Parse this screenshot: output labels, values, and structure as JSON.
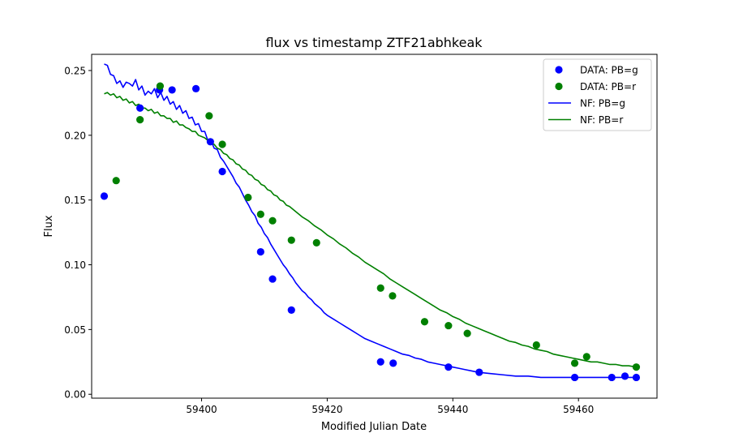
{
  "chart_data": {
    "type": "scatter",
    "title": "flux vs timestamp ZTF21abhkeak",
    "xlabel": "Modified Julian Date",
    "ylabel": "Flux",
    "xlim": [
      59382.5,
      59472.5
    ],
    "ylim": [
      -0.003,
      0.2625
    ],
    "xticks": [
      59400,
      59420,
      59440,
      59460
    ],
    "xtick_labels": [
      "59400",
      "59420",
      "59440",
      "59460"
    ],
    "yticks": [
      0.0,
      0.05,
      0.1,
      0.15,
      0.2,
      0.25
    ],
    "ytick_labels": [
      "0.00",
      "0.05",
      "0.10",
      "0.15",
      "0.20",
      "0.25"
    ],
    "grid": false,
    "legend_position": "upper right",
    "legend": [
      "DATA: PB=g",
      "DATA: PB=r",
      "NF: PB=g",
      "NF: PB=r"
    ],
    "series": [
      {
        "name": "DATA: PB=g",
        "kind": "scatter",
        "color": "#0000ff",
        "points": [
          [
            59384.5,
            0.153
          ],
          [
            59390.2,
            0.221
          ],
          [
            59393.3,
            0.235
          ],
          [
            59395.3,
            0.235
          ],
          [
            59399.1,
            0.236
          ],
          [
            59401.4,
            0.195
          ],
          [
            59403.3,
            0.172
          ],
          [
            59409.4,
            0.11
          ],
          [
            59411.3,
            0.089
          ],
          [
            59414.3,
            0.065
          ],
          [
            59428.5,
            0.025
          ],
          [
            59430.5,
            0.024
          ],
          [
            59439.3,
            0.021
          ],
          [
            59444.2,
            0.017
          ],
          [
            59459.4,
            0.013
          ],
          [
            59465.3,
            0.013
          ],
          [
            59467.4,
            0.014
          ],
          [
            59469.2,
            0.013
          ]
        ]
      },
      {
        "name": "DATA: PB=r",
        "kind": "scatter",
        "color": "#008000",
        "points": [
          [
            59386.4,
            0.165
          ],
          [
            59390.2,
            0.212
          ],
          [
            59393.4,
            0.238
          ],
          [
            59401.2,
            0.215
          ],
          [
            59403.3,
            0.193
          ],
          [
            59407.4,
            0.152
          ],
          [
            59409.4,
            0.139
          ],
          [
            59411.3,
            0.134
          ],
          [
            59414.3,
            0.119
          ],
          [
            59418.3,
            0.117
          ],
          [
            59428.5,
            0.082
          ],
          [
            59430.4,
            0.076
          ],
          [
            59435.5,
            0.056
          ],
          [
            59439.3,
            0.053
          ],
          [
            59442.3,
            0.047
          ],
          [
            59453.3,
            0.038
          ],
          [
            59459.4,
            0.024
          ],
          [
            59461.3,
            0.029
          ],
          [
            59469.2,
            0.021
          ]
        ]
      },
      {
        "name": "NF: PB=g",
        "kind": "line",
        "color": "#0000ff",
        "points": [
          [
            59384.5,
            0.255
          ],
          [
            59385.0,
            0.254
          ],
          [
            59385.5,
            0.247
          ],
          [
            59386.0,
            0.246
          ],
          [
            59386.5,
            0.24
          ],
          [
            59387.0,
            0.242
          ],
          [
            59387.5,
            0.237
          ],
          [
            59388.0,
            0.241
          ],
          [
            59388.5,
            0.24
          ],
          [
            59389.0,
            0.238
          ],
          [
            59389.5,
            0.243
          ],
          [
            59390.0,
            0.235
          ],
          [
            59390.5,
            0.238
          ],
          [
            59391.0,
            0.231
          ],
          [
            59391.5,
            0.234
          ],
          [
            59392.0,
            0.232
          ],
          [
            59392.5,
            0.236
          ],
          [
            59393.0,
            0.229
          ],
          [
            59393.5,
            0.233
          ],
          [
            59394.0,
            0.227
          ],
          [
            59394.5,
            0.23
          ],
          [
            59395.0,
            0.224
          ],
          [
            59395.5,
            0.226
          ],
          [
            59396.0,
            0.22
          ],
          [
            59396.5,
            0.223
          ],
          [
            59397.0,
            0.217
          ],
          [
            59397.5,
            0.219
          ],
          [
            59398.0,
            0.213
          ],
          [
            59398.5,
            0.214
          ],
          [
            59399.0,
            0.208
          ],
          [
            59399.5,
            0.209
          ],
          [
            59400.0,
            0.203
          ],
          [
            59400.5,
            0.203
          ],
          [
            59401.0,
            0.196
          ],
          [
            59401.5,
            0.196
          ],
          [
            59402.0,
            0.19
          ],
          [
            59402.5,
            0.189
          ],
          [
            59403.0,
            0.183
          ],
          [
            59403.5,
            0.18
          ],
          [
            59404.0,
            0.176
          ],
          [
            59404.5,
            0.172
          ],
          [
            59405.0,
            0.168
          ],
          [
            59405.5,
            0.163
          ],
          [
            59406.0,
            0.16
          ],
          [
            59406.5,
            0.155
          ],
          [
            59407.0,
            0.15
          ],
          [
            59407.5,
            0.146
          ],
          [
            59408.0,
            0.141
          ],
          [
            59408.5,
            0.138
          ],
          [
            59409.0,
            0.132
          ],
          [
            59409.5,
            0.129
          ],
          [
            59410.0,
            0.124
          ],
          [
            59410.5,
            0.121
          ],
          [
            59411.0,
            0.116
          ],
          [
            59411.5,
            0.112
          ],
          [
            59412.0,
            0.108
          ],
          [
            59412.5,
            0.104
          ],
          [
            59413.0,
            0.1
          ],
          [
            59413.5,
            0.097
          ],
          [
            59414.0,
            0.093
          ],
          [
            59414.5,
            0.09
          ],
          [
            59415.0,
            0.086
          ],
          [
            59415.5,
            0.083
          ],
          [
            59416.0,
            0.08
          ],
          [
            59416.5,
            0.078
          ],
          [
            59417.0,
            0.075
          ],
          [
            59417.5,
            0.073
          ],
          [
            59418.0,
            0.07
          ],
          [
            59418.5,
            0.068
          ],
          [
            59419.0,
            0.066
          ],
          [
            59419.5,
            0.063
          ],
          [
            59420.0,
            0.061
          ],
          [
            59421.0,
            0.058
          ],
          [
            59422.0,
            0.055
          ],
          [
            59423.0,
            0.052
          ],
          [
            59424.0,
            0.049
          ],
          [
            59425.0,
            0.046
          ],
          [
            59426.0,
            0.043
          ],
          [
            59427.0,
            0.041
          ],
          [
            59428.0,
            0.039
          ],
          [
            59429.0,
            0.037
          ],
          [
            59430.0,
            0.035
          ],
          [
            59431.0,
            0.033
          ],
          [
            59432.0,
            0.031
          ],
          [
            59433.0,
            0.03
          ],
          [
            59434.0,
            0.028
          ],
          [
            59435.0,
            0.027
          ],
          [
            59436.0,
            0.025
          ],
          [
            59437.0,
            0.024
          ],
          [
            59438.0,
            0.023
          ],
          [
            59439.0,
            0.022
          ],
          [
            59440.0,
            0.021
          ],
          [
            59441.0,
            0.02
          ],
          [
            59442.0,
            0.019
          ],
          [
            59443.0,
            0.018
          ],
          [
            59444.0,
            0.017
          ],
          [
            59446.0,
            0.016
          ],
          [
            59448.0,
            0.015
          ],
          [
            59450.0,
            0.014
          ],
          [
            59452.0,
            0.014
          ],
          [
            59454.0,
            0.013
          ],
          [
            59456.0,
            0.013
          ],
          [
            59458.0,
            0.013
          ],
          [
            59460.0,
            0.013
          ],
          [
            59462.0,
            0.013
          ],
          [
            59464.0,
            0.013
          ],
          [
            59466.0,
            0.013
          ],
          [
            59468.0,
            0.013
          ],
          [
            59469.2,
            0.013
          ]
        ]
      },
      {
        "name": "NF: PB=r",
        "kind": "line",
        "color": "#008000",
        "points": [
          [
            59384.5,
            0.232
          ],
          [
            59385.0,
            0.233
          ],
          [
            59385.5,
            0.231
          ],
          [
            59386.0,
            0.232
          ],
          [
            59386.5,
            0.229
          ],
          [
            59387.0,
            0.23
          ],
          [
            59387.5,
            0.227
          ],
          [
            59388.0,
            0.228
          ],
          [
            59388.5,
            0.225
          ],
          [
            59389.0,
            0.226
          ],
          [
            59389.5,
            0.223
          ],
          [
            59390.0,
            0.224
          ],
          [
            59390.5,
            0.221
          ],
          [
            59391.0,
            0.221
          ],
          [
            59391.5,
            0.219
          ],
          [
            59392.0,
            0.22
          ],
          [
            59392.5,
            0.217
          ],
          [
            59393.0,
            0.218
          ],
          [
            59393.5,
            0.215
          ],
          [
            59394.0,
            0.215
          ],
          [
            59394.5,
            0.213
          ],
          [
            59395.0,
            0.213
          ],
          [
            59395.5,
            0.21
          ],
          [
            59396.0,
            0.211
          ],
          [
            59396.5,
            0.208
          ],
          [
            59397.0,
            0.208
          ],
          [
            59397.5,
            0.206
          ],
          [
            59398.0,
            0.205
          ],
          [
            59398.5,
            0.203
          ],
          [
            59399.0,
            0.203
          ],
          [
            59399.5,
            0.2
          ],
          [
            59400.0,
            0.199
          ],
          [
            59400.5,
            0.198
          ],
          [
            59401.0,
            0.196
          ],
          [
            59401.5,
            0.194
          ],
          [
            59402.0,
            0.193
          ],
          [
            59402.5,
            0.19
          ],
          [
            59403.0,
            0.189
          ],
          [
            59403.5,
            0.186
          ],
          [
            59404.0,
            0.185
          ],
          [
            59404.5,
            0.182
          ],
          [
            59405.0,
            0.181
          ],
          [
            59405.5,
            0.178
          ],
          [
            59406.0,
            0.177
          ],
          [
            59406.5,
            0.174
          ],
          [
            59407.0,
            0.173
          ],
          [
            59407.5,
            0.17
          ],
          [
            59408.0,
            0.169
          ],
          [
            59408.5,
            0.166
          ],
          [
            59409.0,
            0.165
          ],
          [
            59409.5,
            0.162
          ],
          [
            59410.0,
            0.161
          ],
          [
            59410.5,
            0.158
          ],
          [
            59411.0,
            0.157
          ],
          [
            59411.5,
            0.154
          ],
          [
            59412.0,
            0.153
          ],
          [
            59412.5,
            0.15
          ],
          [
            59413.0,
            0.149
          ],
          [
            59413.5,
            0.146
          ],
          [
            59414.0,
            0.145
          ],
          [
            59415.0,
            0.141
          ],
          [
            59416.0,
            0.137
          ],
          [
            59417.0,
            0.134
          ],
          [
            59418.0,
            0.13
          ],
          [
            59419.0,
            0.127
          ],
          [
            59420.0,
            0.123
          ],
          [
            59421.0,
            0.12
          ],
          [
            59422.0,
            0.116
          ],
          [
            59423.0,
            0.113
          ],
          [
            59424.0,
            0.109
          ],
          [
            59425.0,
            0.106
          ],
          [
            59426.0,
            0.102
          ],
          [
            59427.0,
            0.099
          ],
          [
            59428.0,
            0.096
          ],
          [
            59429.0,
            0.093
          ],
          [
            59430.0,
            0.089
          ],
          [
            59431.0,
            0.086
          ],
          [
            59432.0,
            0.083
          ],
          [
            59433.0,
            0.08
          ],
          [
            59434.0,
            0.077
          ],
          [
            59435.0,
            0.074
          ],
          [
            59436.0,
            0.071
          ],
          [
            59437.0,
            0.068
          ],
          [
            59438.0,
            0.065
          ],
          [
            59439.0,
            0.063
          ],
          [
            59440.0,
            0.06
          ],
          [
            59441.0,
            0.058
          ],
          [
            59442.0,
            0.055
          ],
          [
            59443.0,
            0.053
          ],
          [
            59444.0,
            0.051
          ],
          [
            59445.0,
            0.049
          ],
          [
            59446.0,
            0.047
          ],
          [
            59447.0,
            0.045
          ],
          [
            59448.0,
            0.043
          ],
          [
            59449.0,
            0.041
          ],
          [
            59450.0,
            0.04
          ],
          [
            59451.0,
            0.038
          ],
          [
            59452.0,
            0.037
          ],
          [
            59453.0,
            0.035
          ],
          [
            59454.0,
            0.034
          ],
          [
            59455.0,
            0.033
          ],
          [
            59456.0,
            0.031
          ],
          [
            59457.0,
            0.03
          ],
          [
            59458.0,
            0.029
          ],
          [
            59459.0,
            0.028
          ],
          [
            59460.0,
            0.027
          ],
          [
            59461.0,
            0.026
          ],
          [
            59462.0,
            0.025
          ],
          [
            59463.0,
            0.025
          ],
          [
            59464.0,
            0.024
          ],
          [
            59465.0,
            0.023
          ],
          [
            59466.0,
            0.023
          ],
          [
            59467.0,
            0.022
          ],
          [
            59468.0,
            0.022
          ],
          [
            59469.2,
            0.021
          ]
        ]
      }
    ]
  }
}
